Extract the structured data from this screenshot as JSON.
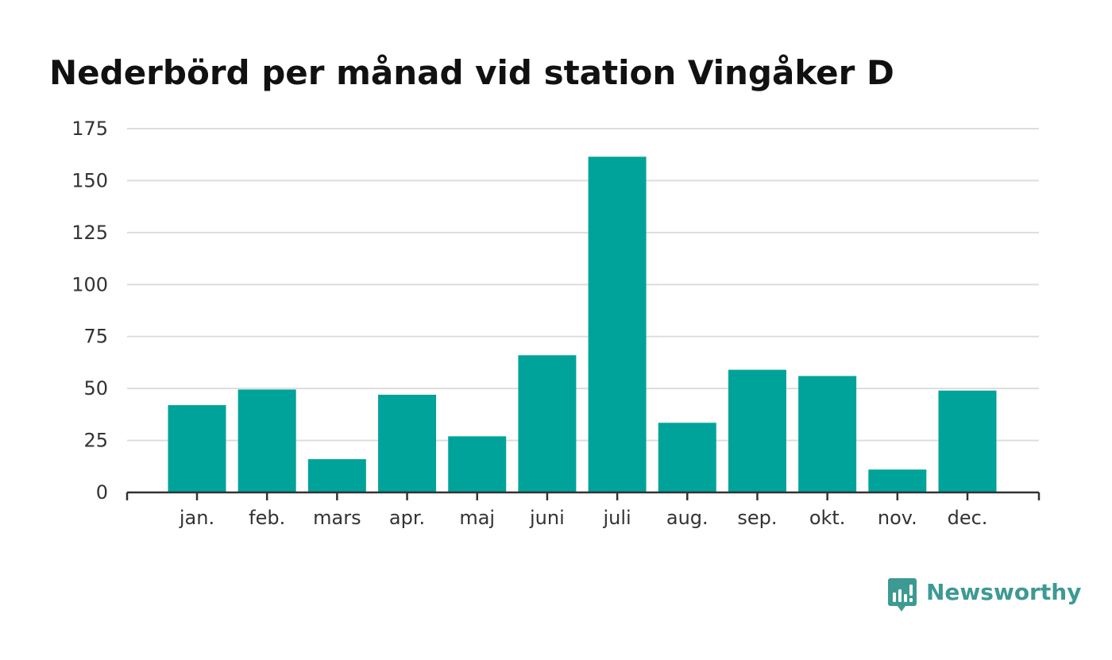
{
  "chart_data": {
    "type": "bar",
    "title": "Nederbörd per månad vid station Vingåker D",
    "xlabel": "",
    "ylabel": "",
    "categories": [
      "jan.",
      "feb.",
      "mars",
      "apr.",
      "maj",
      "juni",
      "juli",
      "aug.",
      "sep.",
      "okt.",
      "nov.",
      "dec."
    ],
    "values": [
      42,
      49.5,
      16,
      47,
      27,
      66,
      161.5,
      33.5,
      59,
      56,
      11,
      49
    ],
    "ylim": [
      0,
      175
    ],
    "yticks": [
      0,
      25,
      50,
      75,
      100,
      125,
      150,
      175
    ],
    "grid": true,
    "legend": "none",
    "bar_color": "#00a39a"
  },
  "brand": {
    "name": "Newsworthy",
    "icon": "newsworthy-logo-icon",
    "color": "#3d9a93"
  }
}
